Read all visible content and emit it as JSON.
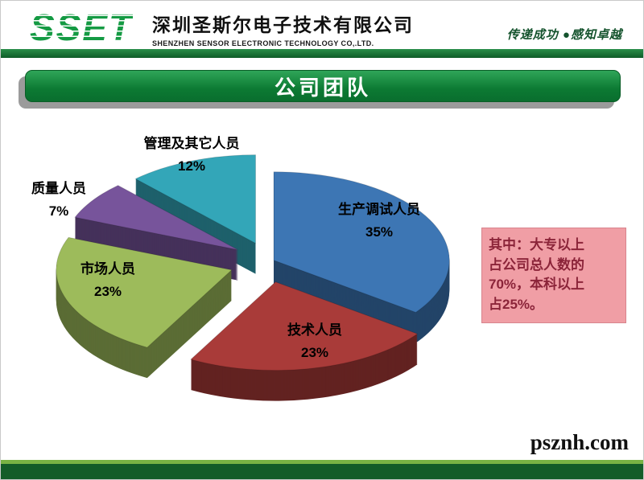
{
  "header": {
    "logo": "SSET",
    "company_cn": "深圳圣斯尔电子技术有限公司",
    "company_en": "SHENZHEN SENSOR ELECTRONIC TECHNOLOGY CO,.LTD.",
    "slogan": "传递成功 ●感知卓越"
  },
  "title": "公司团队",
  "chart_data": {
    "type": "pie",
    "style": "3d-exploded",
    "title": "公司团队",
    "labels": [
      "生产调试人员",
      "技术人员",
      "市场人员",
      "质量人员",
      "管理及其它人员"
    ],
    "values": [
      35,
      23,
      23,
      7,
      12
    ],
    "unit": "%",
    "colors": [
      "#3D76B4",
      "#A93B39",
      "#9DBB5B",
      "#77549B",
      "#33A6B8"
    ],
    "legend": "none",
    "data_labels": "name-and-percent"
  },
  "annotation": {
    "lines": [
      "其中：大专以上",
      "占公司总人数的",
      "70%，本科以上",
      "占25%。"
    ]
  },
  "watermark": "psznh.com"
}
